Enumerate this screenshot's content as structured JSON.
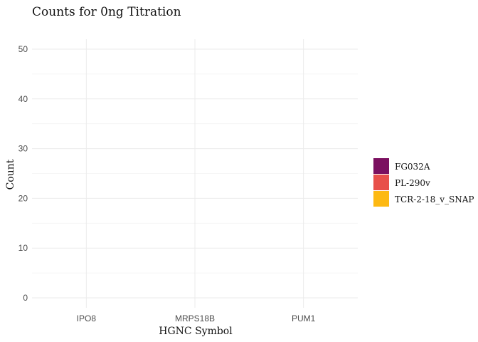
{
  "chart_data": {
    "type": "bar",
    "title": "Counts for 0ng Titration",
    "xlabel": "HGNC Symbol",
    "ylabel": "Count",
    "categories": [
      "IPO8",
      "MRPS18B",
      "PUM1"
    ],
    "series": [
      {
        "name": "FG032A",
        "color": "#7B1060",
        "values": [
          0,
          0,
          0
        ]
      },
      {
        "name": "PL-290v",
        "color": "#E8504A",
        "values": [
          0,
          0,
          0
        ]
      },
      {
        "name": "TCR-2-18_v_SNAP",
        "color": "#FDB913",
        "values": [
          0,
          0,
          0
        ]
      }
    ],
    "ylim": [
      -2,
      52
    ],
    "yticks": [
      0,
      10,
      20,
      30,
      40,
      50
    ],
    "grid": true,
    "legend_position": "right"
  }
}
